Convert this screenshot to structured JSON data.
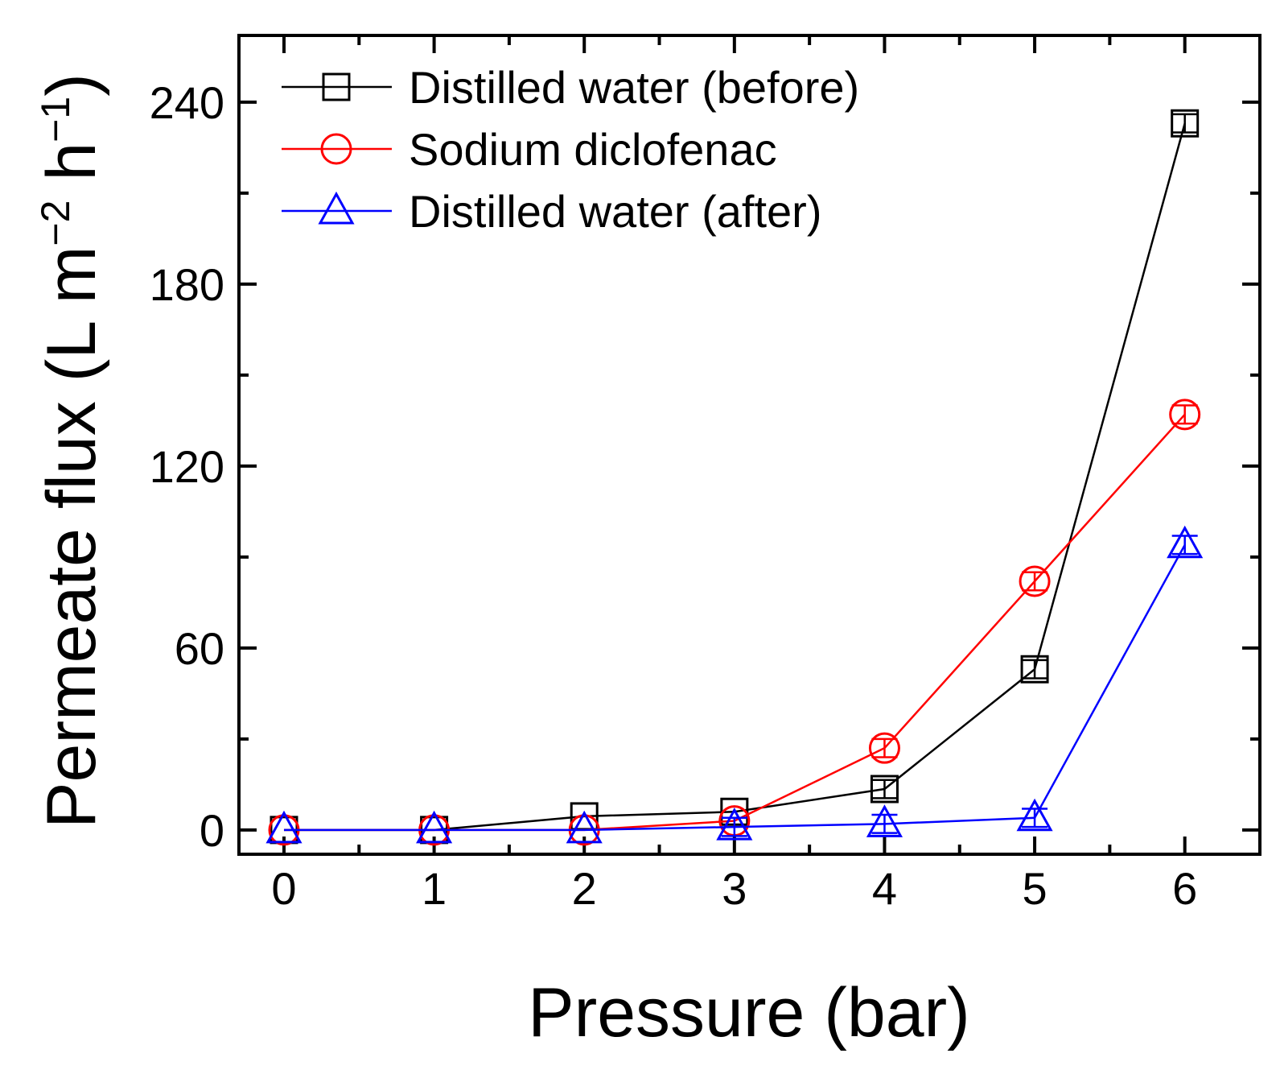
{
  "chart_data": {
    "type": "line",
    "xlabel": "Pressure (bar)",
    "ylabel": {
      "prefix": "Permeate flux (L m",
      "sup1": "−2",
      "mid": " h",
      "sup2": "−1",
      "suffix": ")"
    },
    "xlim": [
      -0.3,
      6.5
    ],
    "ylim": [
      -8,
      262
    ],
    "x_major_ticks": [
      0,
      1,
      2,
      3,
      4,
      5,
      6
    ],
    "x_tick_labels": [
      "0",
      "1",
      "2",
      "3",
      "4",
      "5",
      "6"
    ],
    "x_minor_ticks": [
      0.5,
      1.5,
      2.5,
      3.5,
      4.5,
      5.5
    ],
    "y_major_ticks": [
      0,
      60,
      120,
      180,
      240
    ],
    "y_tick_labels": [
      "0",
      "60",
      "120",
      "180",
      "240"
    ],
    "y_minor_ticks": [
      30,
      90,
      150,
      210
    ],
    "grid": false,
    "legend_position": "top-left",
    "x": [
      0,
      1,
      2,
      3,
      4,
      5,
      6
    ],
    "series": [
      {
        "name": "Distilled water (before)",
        "color": "#000000",
        "marker": "square",
        "values": [
          0,
          0,
          4.5,
          6,
          13.5,
          53,
          233
        ],
        "errors": [
          0,
          0,
          0,
          0,
          3,
          3,
          3
        ]
      },
      {
        "name": "Sodium diclofenac",
        "color": "#ff0000",
        "marker": "circle",
        "values": [
          0,
          0,
          0,
          3,
          27,
          82,
          137
        ],
        "errors": [
          0,
          0,
          0,
          0,
          3,
          3,
          3
        ]
      },
      {
        "name": "Distilled water (after)",
        "color": "#0000ff",
        "marker": "triangle",
        "values": [
          0,
          0,
          0,
          1,
          2,
          4,
          94
        ],
        "errors": [
          0,
          0,
          0,
          3,
          3,
          3,
          3
        ]
      }
    ]
  }
}
